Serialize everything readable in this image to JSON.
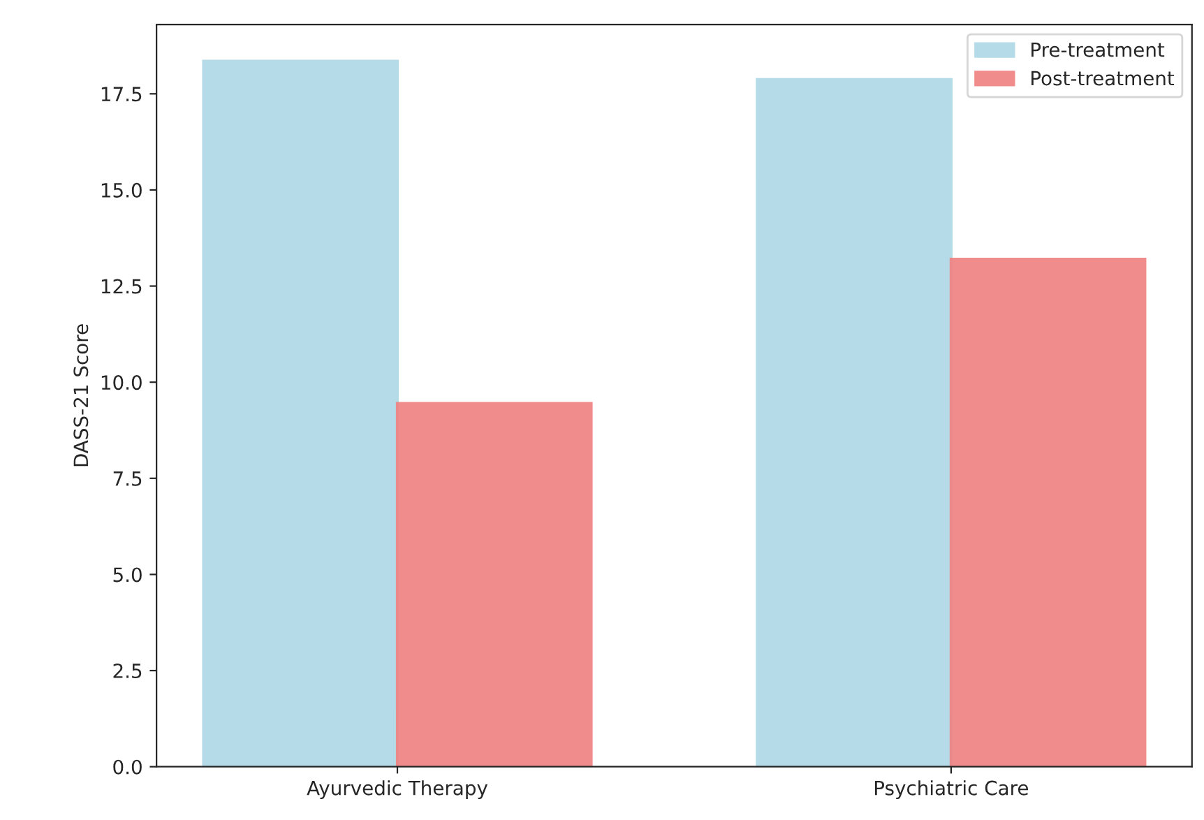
{
  "chart_data": {
    "type": "bar",
    "ylabel": "DASS-21 Score",
    "categories": [
      "Ayurvedic Therapy",
      "Psychiatric Care"
    ],
    "series": [
      {
        "name": "Pre-treatment",
        "color": "#add8e6",
        "values": [
          18.35,
          17.87
        ]
      },
      {
        "name": "Post-treatment",
        "color": "#f08080",
        "values": [
          9.45,
          13.2
        ]
      }
    ],
    "ylim": [
      0,
      19.3
    ],
    "yticks": [
      {
        "value": 0,
        "label": "0.0"
      },
      2.5,
      {
        "value": 5,
        "label": "5.0"
      },
      7.5,
      {
        "value": 10,
        "label": "10.0"
      },
      12.5,
      {
        "value": 15,
        "label": "15.0"
      },
      17.5
    ],
    "legend": "top right",
    "grid": false
  }
}
